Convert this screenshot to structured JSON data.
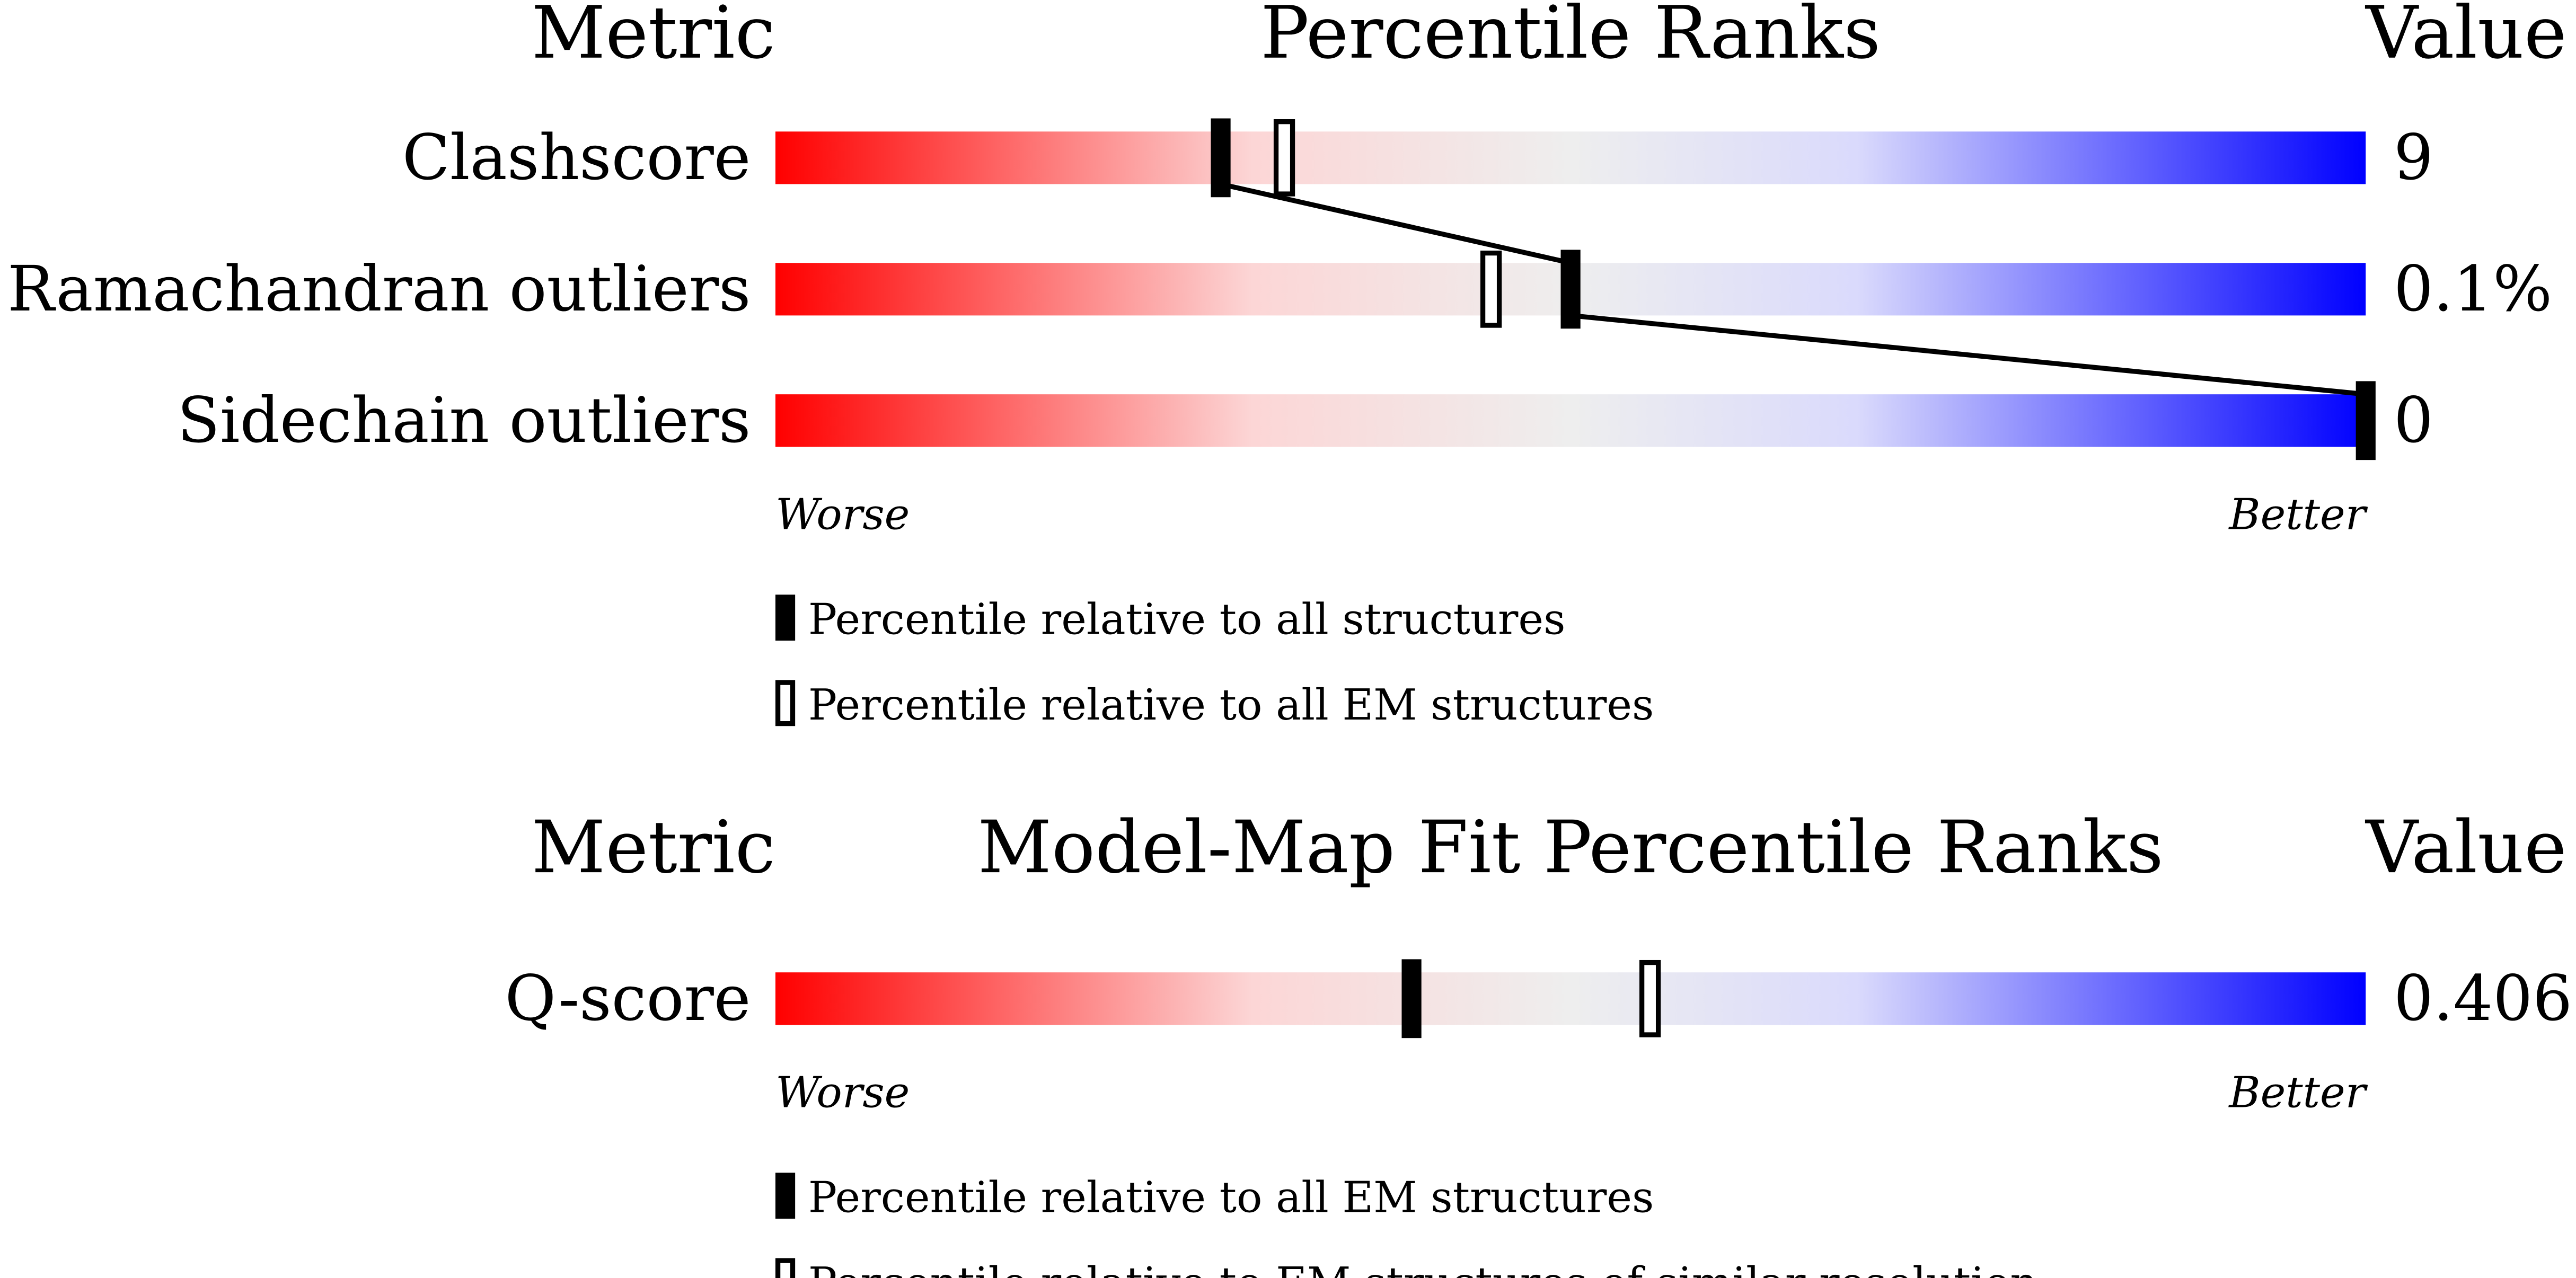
{
  "chart_data": [
    {
      "type": "slider",
      "metric_header": "Metric",
      "title": "Percentile Ranks",
      "value_header": "Value",
      "xlim": [
        0,
        100
      ],
      "worse": "Worse",
      "better": "Better",
      "legend": [
        {
          "label": "Percentile relative to all structures",
          "style": "filled"
        },
        {
          "label": "Percentile relative to all EM structures",
          "style": "open"
        }
      ],
      "rows": [
        {
          "metric": "Clashscore",
          "value": "9",
          "percentiles": [
            28,
            32
          ]
        },
        {
          "metric": "Ramachandran outliers",
          "value": "0.1%",
          "percentiles": [
            50,
            45
          ]
        },
        {
          "metric": "Sidechain outliers",
          "value": "0",
          "percentiles": [
            100,
            null
          ]
        }
      ],
      "connect": true
    },
    {
      "type": "slider",
      "metric_header": "Metric",
      "title": "Model-Map Fit Percentile Ranks",
      "value_header": "Value",
      "xlim": [
        0,
        100
      ],
      "worse": "Worse",
      "better": "Better",
      "legend": [
        {
          "label": "Percentile relative to all EM structures",
          "style": "filled"
        },
        {
          "label": "Percentile relative to EM structures of similar resolution",
          "style": "open"
        }
      ],
      "rows": [
        {
          "metric": "Q-score",
          "value": "0.406",
          "percentiles": [
            40,
            55
          ]
        }
      ],
      "connect": false
    }
  ]
}
